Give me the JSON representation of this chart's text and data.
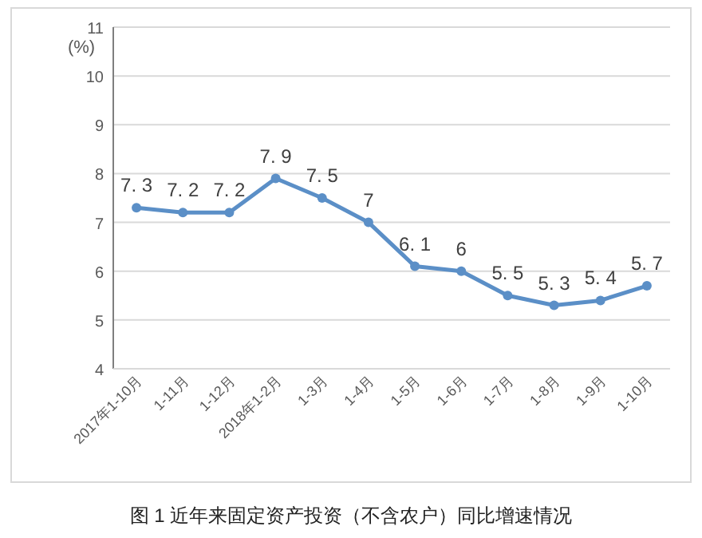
{
  "chart_data": {
    "type": "line",
    "title": "图 1 近年来固定资产投资（不含农户）同比增速情况",
    "ylabel": "(%)",
    "categories": [
      "2017年1-10月",
      "1-11月",
      "1-12月",
      "2018年1-2月",
      "1-3月",
      "1-4月",
      "1-5月",
      "1-6月",
      "1-7月",
      "1-8月",
      "1-9月",
      "1-10月"
    ],
    "series": [
      {
        "color": "#5b8fc7",
        "values": [
          7.3,
          7.2,
          7.2,
          7.9,
          7.5,
          7,
          6.1,
          6,
          5.5,
          5.3,
          5.4,
          5.7
        ]
      }
    ],
    "ylim": [
      4,
      11
    ],
    "yticks": [
      4,
      5,
      6,
      7,
      8,
      9,
      10,
      11
    ],
    "grid": "y",
    "data_labels": true,
    "marker": "circle",
    "line_style": "solid"
  }
}
